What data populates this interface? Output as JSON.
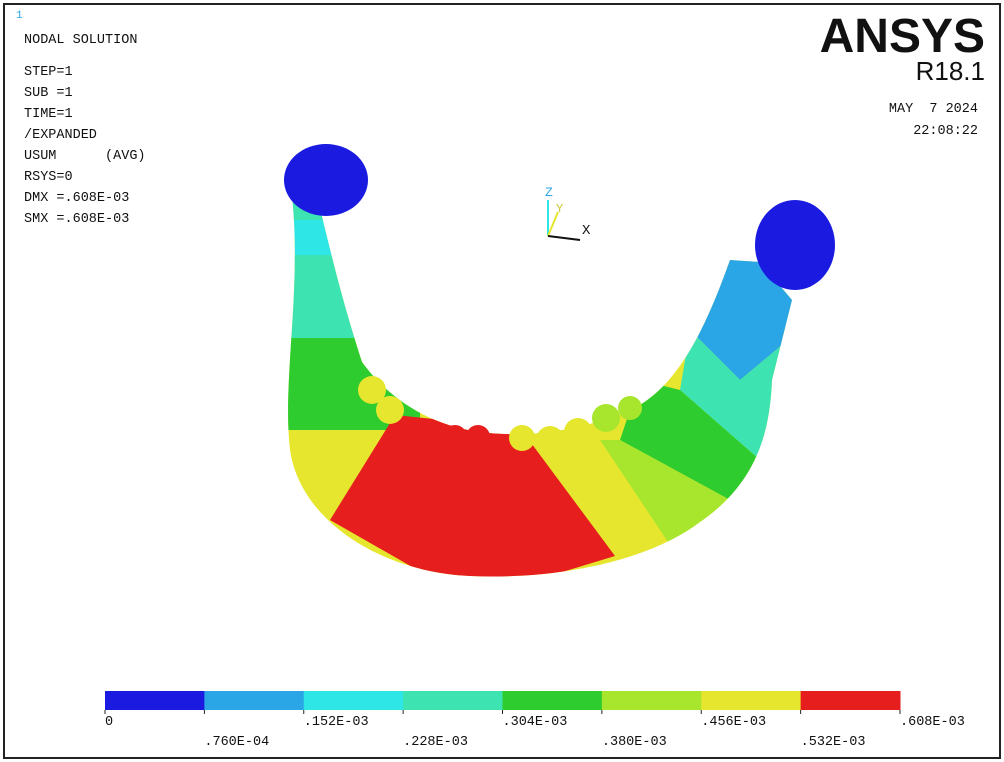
{
  "window": {
    "window_number": "1",
    "info_lines": [
      "NODAL SOLUTION",
      "STEP=1",
      "SUB =1",
      "TIME=1",
      "/EXPANDED",
      "USUM      (AVG)",
      "RSYS=0",
      "DMX =.608E-03",
      "SMX =.608E-03"
    ],
    "logo": "ANSYS",
    "version": "R18.1",
    "date": "MAY  7 2024",
    "time": "22:08:22",
    "triad": {
      "z": "Z",
      "y": "Y",
      "x": "X"
    },
    "legend": {
      "colors": [
        "#1a1ae0",
        "#2aa6e6",
        "#2ee6e6",
        "#3ee3b2",
        "#2ecc2e",
        "#a8e62e",
        "#e6e62e",
        "#e61e1e"
      ],
      "labels": [
        "0",
        ".760E-04",
        ".152E-03",
        ".228E-03",
        ".304E-03",
        ".380E-03",
        ".456E-03",
        ".532E-03",
        ".608E-03"
      ]
    }
  }
}
